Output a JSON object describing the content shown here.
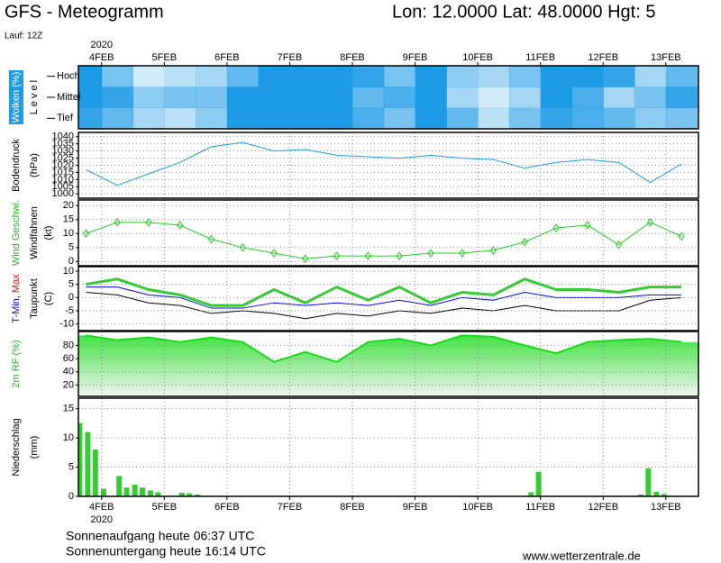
{
  "title": "GFS - Meteogramm",
  "location": "Lon: 12.0000 Lat: 48.0000 Hgt: 5",
  "run": "Lauf: 12Z",
  "time_axis": {
    "xlim": [
      3.63,
      13.52
    ],
    "year": "2020",
    "xticks": [
      {
        "value": 4,
        "label": "4FEB"
      },
      {
        "value": 5,
        "label": "5FEB"
      },
      {
        "value": 6,
        "label": "6FEB"
      },
      {
        "value": 7,
        "label": "7FEB"
      },
      {
        "value": 8,
        "label": "8FEB"
      },
      {
        "value": 9,
        "label": "9FEB"
      },
      {
        "value": 10,
        "label": "10FEB"
      },
      {
        "value": 11,
        "label": "11FEB"
      },
      {
        "value": 12,
        "label": "12FEB"
      },
      {
        "value": 13,
        "label": "13FEB"
      }
    ]
  },
  "chart_data": [
    {
      "type": "cloud",
      "ylabel": [
        [
          {
            "text": "Wolken (%)",
            "color": "#ffffff"
          }
        ],
        [
          {
            "text": "L e v e l",
            "color": "#000000"
          }
        ]
      ],
      "ylabel_box": "#1e9be6",
      "color": "#1e9be6",
      "x": [
        3.75,
        4.25,
        4.75,
        5.25,
        5.75,
        6.25,
        6.75,
        7.25,
        7.75,
        8.25,
        8.75,
        9.25,
        9.75,
        10.25,
        10.75,
        11.25,
        11.75,
        12.25,
        12.75,
        13.25
      ],
      "series": [
        {
          "name": "Hoch",
          "values": [
            100,
            60,
            20,
            30,
            40,
            70,
            100,
            100,
            100,
            90,
            60,
            100,
            50,
            40,
            60,
            100,
            100,
            90,
            40,
            70
          ]
        },
        {
          "name": "Mittel",
          "values": [
            100,
            90,
            50,
            60,
            60,
            100,
            100,
            100,
            100,
            70,
            80,
            100,
            40,
            20,
            40,
            100,
            80,
            40,
            60,
            90
          ]
        },
        {
          "name": "Tief",
          "values": [
            90,
            70,
            40,
            30,
            50,
            100,
            100,
            100,
            100,
            80,
            60,
            100,
            70,
            30,
            60,
            90,
            80,
            70,
            50,
            60
          ]
        }
      ]
    },
    {
      "type": "line",
      "ylabel": [
        [
          {
            "text": "Bodendruck",
            "color": "#000000"
          }
        ],
        [
          {
            "text": "(hPa)",
            "color": "#000000"
          }
        ]
      ],
      "ylim": [
        997,
        1043
      ],
      "yticks": [
        1000,
        1005,
        1010,
        1015,
        1020,
        1025,
        1030,
        1035,
        1040
      ],
      "grid": true,
      "x": [
        3.75,
        4.25,
        4.75,
        5.25,
        5.75,
        6.25,
        6.75,
        7.25,
        7.75,
        8.25,
        8.75,
        9.25,
        9.75,
        10.25,
        10.75,
        11.25,
        11.75,
        12.25,
        12.75,
        13.25
      ],
      "series": [
        {
          "color": "#1e9be6",
          "values": [
            1017,
            1006,
            1014,
            1022,
            1033,
            1036,
            1030,
            1031,
            1027,
            1026,
            1025,
            1027,
            1025,
            1024,
            1018,
            1022,
            1024,
            1022,
            1008,
            1021
          ]
        }
      ]
    },
    {
      "type": "line",
      "ylabel": [
        [
          {
            "text": "Wind Geschwi.",
            "color": "#22bb22"
          }
        ],
        [
          {
            "text": "Windfahnen",
            "color": "#000000"
          }
        ],
        [
          {
            "text": "(kt)",
            "color": "#000000"
          }
        ]
      ],
      "ylim": [
        -1.5,
        22
      ],
      "yticks": [
        0,
        5,
        10,
        15,
        20
      ],
      "grid": true,
      "x": [
        3.75,
        4.25,
        4.75,
        5.25,
        5.75,
        6.25,
        6.75,
        7.25,
        7.75,
        8.25,
        8.75,
        9.25,
        9.75,
        10.25,
        10.75,
        11.25,
        11.75,
        12.25,
        12.75,
        13.25
      ],
      "series": [
        {
          "color": "#22cc22",
          "marker": "diamond",
          "values": [
            10,
            14,
            14,
            13,
            8,
            5,
            3,
            1,
            2,
            2,
            2,
            3,
            3,
            4,
            7,
            12,
            13,
            6,
            14,
            9
          ]
        }
      ]
    },
    {
      "type": "line",
      "ylabel": [
        [
          {
            "text": "T-Min, ",
            "color": "#0000ff"
          },
          {
            "text": "Max",
            "color": "#ff0000"
          }
        ],
        [
          {
            "text": "Taupunkt",
            "color": "#000000"
          }
        ],
        [
          {
            "text": "(C)",
            "color": "#000000"
          }
        ]
      ],
      "ylim": [
        -12.5,
        11.7
      ],
      "yticks": [
        -10,
        -5,
        0,
        5,
        10
      ],
      "grid": true,
      "x": [
        3.75,
        4.25,
        4.75,
        5.25,
        5.75,
        6.25,
        6.75,
        7.25,
        7.75,
        8.25,
        8.75,
        9.25,
        9.75,
        10.25,
        10.75,
        11.25,
        11.75,
        12.25,
        12.75,
        13.25
      ],
      "series": [
        {
          "color": "#33cc33",
          "width": 3,
          "values": [
            5,
            7,
            3,
            1,
            -3,
            -3,
            3,
            -2,
            4,
            -1,
            4,
            -2,
            2,
            1,
            7,
            3,
            3,
            2,
            4,
            4
          ]
        },
        {
          "color": "#0000ff",
          "width": 1,
          "values": [
            4,
            4,
            1,
            0,
            -4,
            -4,
            -2,
            -3,
            -2,
            -3,
            -1,
            -3,
            0,
            -1,
            2,
            0,
            0,
            0,
            1,
            1
          ]
        },
        {
          "color": "#000000",
          "width": 1,
          "values": [
            2,
            1,
            -2,
            -3,
            -6,
            -5,
            -6,
            -8,
            -6,
            -7,
            -5,
            -6,
            -4,
            -5,
            -3,
            -5,
            -5,
            -5,
            -1,
            0
          ]
        }
      ]
    },
    {
      "type": "area",
      "ylabel": [
        [
          {
            "text": "2m RF (%)",
            "color": "#22bb22"
          }
        ]
      ],
      "ylim": [
        3,
        101
      ],
      "yticks": [
        20,
        40,
        60,
        80
      ],
      "grid": true,
      "x": [
        3.75,
        4.25,
        4.75,
        5.25,
        5.75,
        6.25,
        6.75,
        7.25,
        7.75,
        8.25,
        8.75,
        9.25,
        9.75,
        10.25,
        10.75,
        11.25,
        11.75,
        12.25,
        12.75,
        13.25
      ],
      "series": [
        {
          "color": "#11dd11",
          "values": [
            95,
            88,
            92,
            85,
            92,
            85,
            55,
            70,
            55,
            85,
            90,
            80,
            95,
            93,
            80,
            68,
            85,
            88,
            90,
            85
          ]
        }
      ]
    },
    {
      "type": "bar",
      "ylabel": [
        [
          {
            "text": "Niederschlag",
            "color": "#000000"
          }
        ],
        [
          {
            "text": "(mm)",
            "color": "#000000"
          }
        ]
      ],
      "ylim": [
        0,
        16.8
      ],
      "yticks": [
        0,
        5,
        10,
        15
      ],
      "grid": true,
      "color": "#33cc33",
      "x": [
        3.65,
        3.78,
        3.9,
        4.03,
        4.28,
        4.4,
        4.53,
        4.65,
        4.78,
        4.9,
        5.28,
        5.4,
        5.53,
        10.85,
        10.97,
        12.6,
        12.72,
        12.85,
        12.97
      ],
      "values": [
        12.5,
        11,
        8,
        1.3,
        3.5,
        1.5,
        2,
        1.5,
        1,
        0.7,
        0.6,
        0.5,
        0.3,
        0.7,
        4.2,
        0.3,
        4.8,
        0.8,
        0.4
      ]
    }
  ],
  "footer": {
    "sunrise": "Sonnenaufgang heute 06:37 UTC",
    "sunset": "Sonnenuntergang heute 16:14 UTC",
    "source": "www.wetterzentrale.de"
  }
}
